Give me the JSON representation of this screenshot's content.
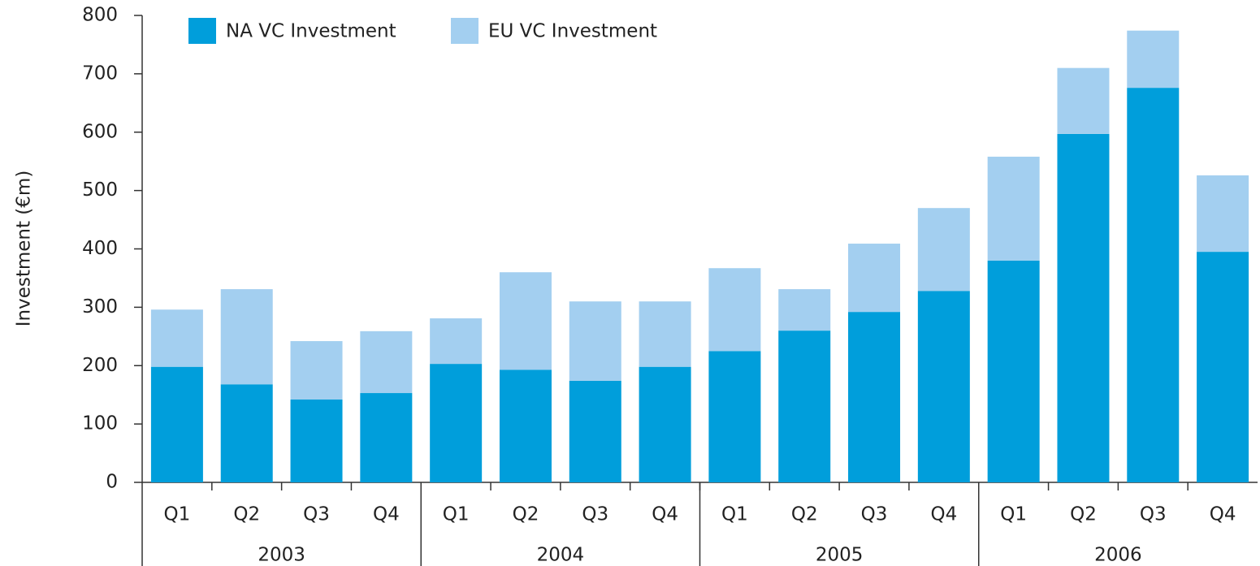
{
  "chart_data": {
    "type": "stacked_bar",
    "ylabel": "Investment (€m)",
    "categories": [
      "Q1",
      "Q2",
      "Q3",
      "Q4",
      "Q1",
      "Q2",
      "Q3",
      "Q4",
      "Q1",
      "Q2",
      "Q3",
      "Q4",
      "Q1",
      "Q2",
      "Q3",
      "Q4"
    ],
    "groups": [
      "2003",
      "2004",
      "2005",
      "2006"
    ],
    "series": [
      {
        "name": "NA VC Investment",
        "color": "#009edb",
        "values": [
          198,
          168,
          142,
          153,
          203,
          193,
          174,
          198,
          225,
          260,
          292,
          328,
          380,
          597,
          676,
          395
        ]
      },
      {
        "name": "EU VC Investment",
        "color": "#a3cff0",
        "values": [
          98,
          163,
          100,
          106,
          78,
          167,
          136,
          112,
          142,
          71,
          117,
          142,
          178,
          113,
          98,
          131
        ]
      }
    ],
    "ylim": [
      0,
      800
    ],
    "yticks": [
      0,
      100,
      200,
      300,
      400,
      500,
      600,
      700,
      800
    ],
    "legend": "top-left"
  }
}
